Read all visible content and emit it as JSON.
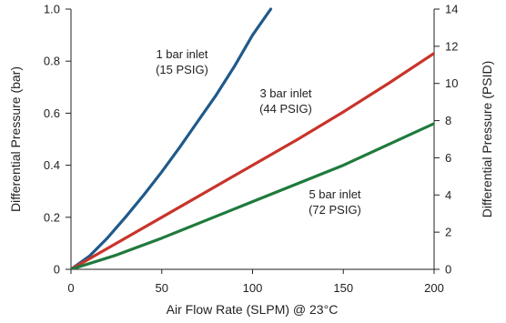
{
  "chart_data": {
    "type": "line",
    "xlabel": "Air Flow Rate (SLPM) @ 23°C",
    "ylabel": "Differential Pressure (bar)",
    "y2label": "Differential Pressure (PSID)",
    "xlim": [
      0,
      200
    ],
    "ylim": [
      0,
      1.0
    ],
    "y2lim": [
      0,
      14
    ],
    "x_ticks": [
      0,
      50,
      100,
      150,
      200
    ],
    "y_ticks": [
      0,
      0.2,
      0.4,
      0.6,
      0.8,
      1.0
    ],
    "y_tick_labels": [
      "0",
      "0.2",
      "0.4",
      "0.6",
      "0.8",
      "1.0"
    ],
    "y2_ticks": [
      0,
      2,
      4,
      6,
      8,
      10,
      12,
      14
    ],
    "grid": false,
    "series": [
      {
        "name": "1 bar inlet (15 PSIG)",
        "label_lines": [
          "1 bar inlet",
          "(15 PSIG)"
        ],
        "color": "#1f5a8a",
        "x": [
          0,
          10,
          20,
          30,
          40,
          50,
          60,
          70,
          80,
          90,
          100,
          110
        ],
        "y": [
          0,
          0.05,
          0.12,
          0.2,
          0.285,
          0.375,
          0.47,
          0.57,
          0.67,
          0.78,
          0.9,
          1.0
        ]
      },
      {
        "name": "3 bar inlet (44 PSIG)",
        "label_lines": [
          "3 bar inlet",
          "(44 PSIG)"
        ],
        "color": "#c8342a",
        "x": [
          0,
          25,
          50,
          75,
          100,
          125,
          150,
          175,
          200
        ],
        "y": [
          0,
          0.1,
          0.2,
          0.3,
          0.4,
          0.5,
          0.605,
          0.715,
          0.83
        ]
      },
      {
        "name": "5 bar inlet (72 PSIG)",
        "label_lines": [
          "5 bar inlet",
          "(72 PSIG)"
        ],
        "color": "#1f7a3c",
        "x": [
          0,
          25,
          50,
          75,
          100,
          125,
          150,
          175,
          200
        ],
        "y": [
          0,
          0.055,
          0.12,
          0.19,
          0.26,
          0.33,
          0.4,
          0.48,
          0.56
        ]
      }
    ]
  }
}
